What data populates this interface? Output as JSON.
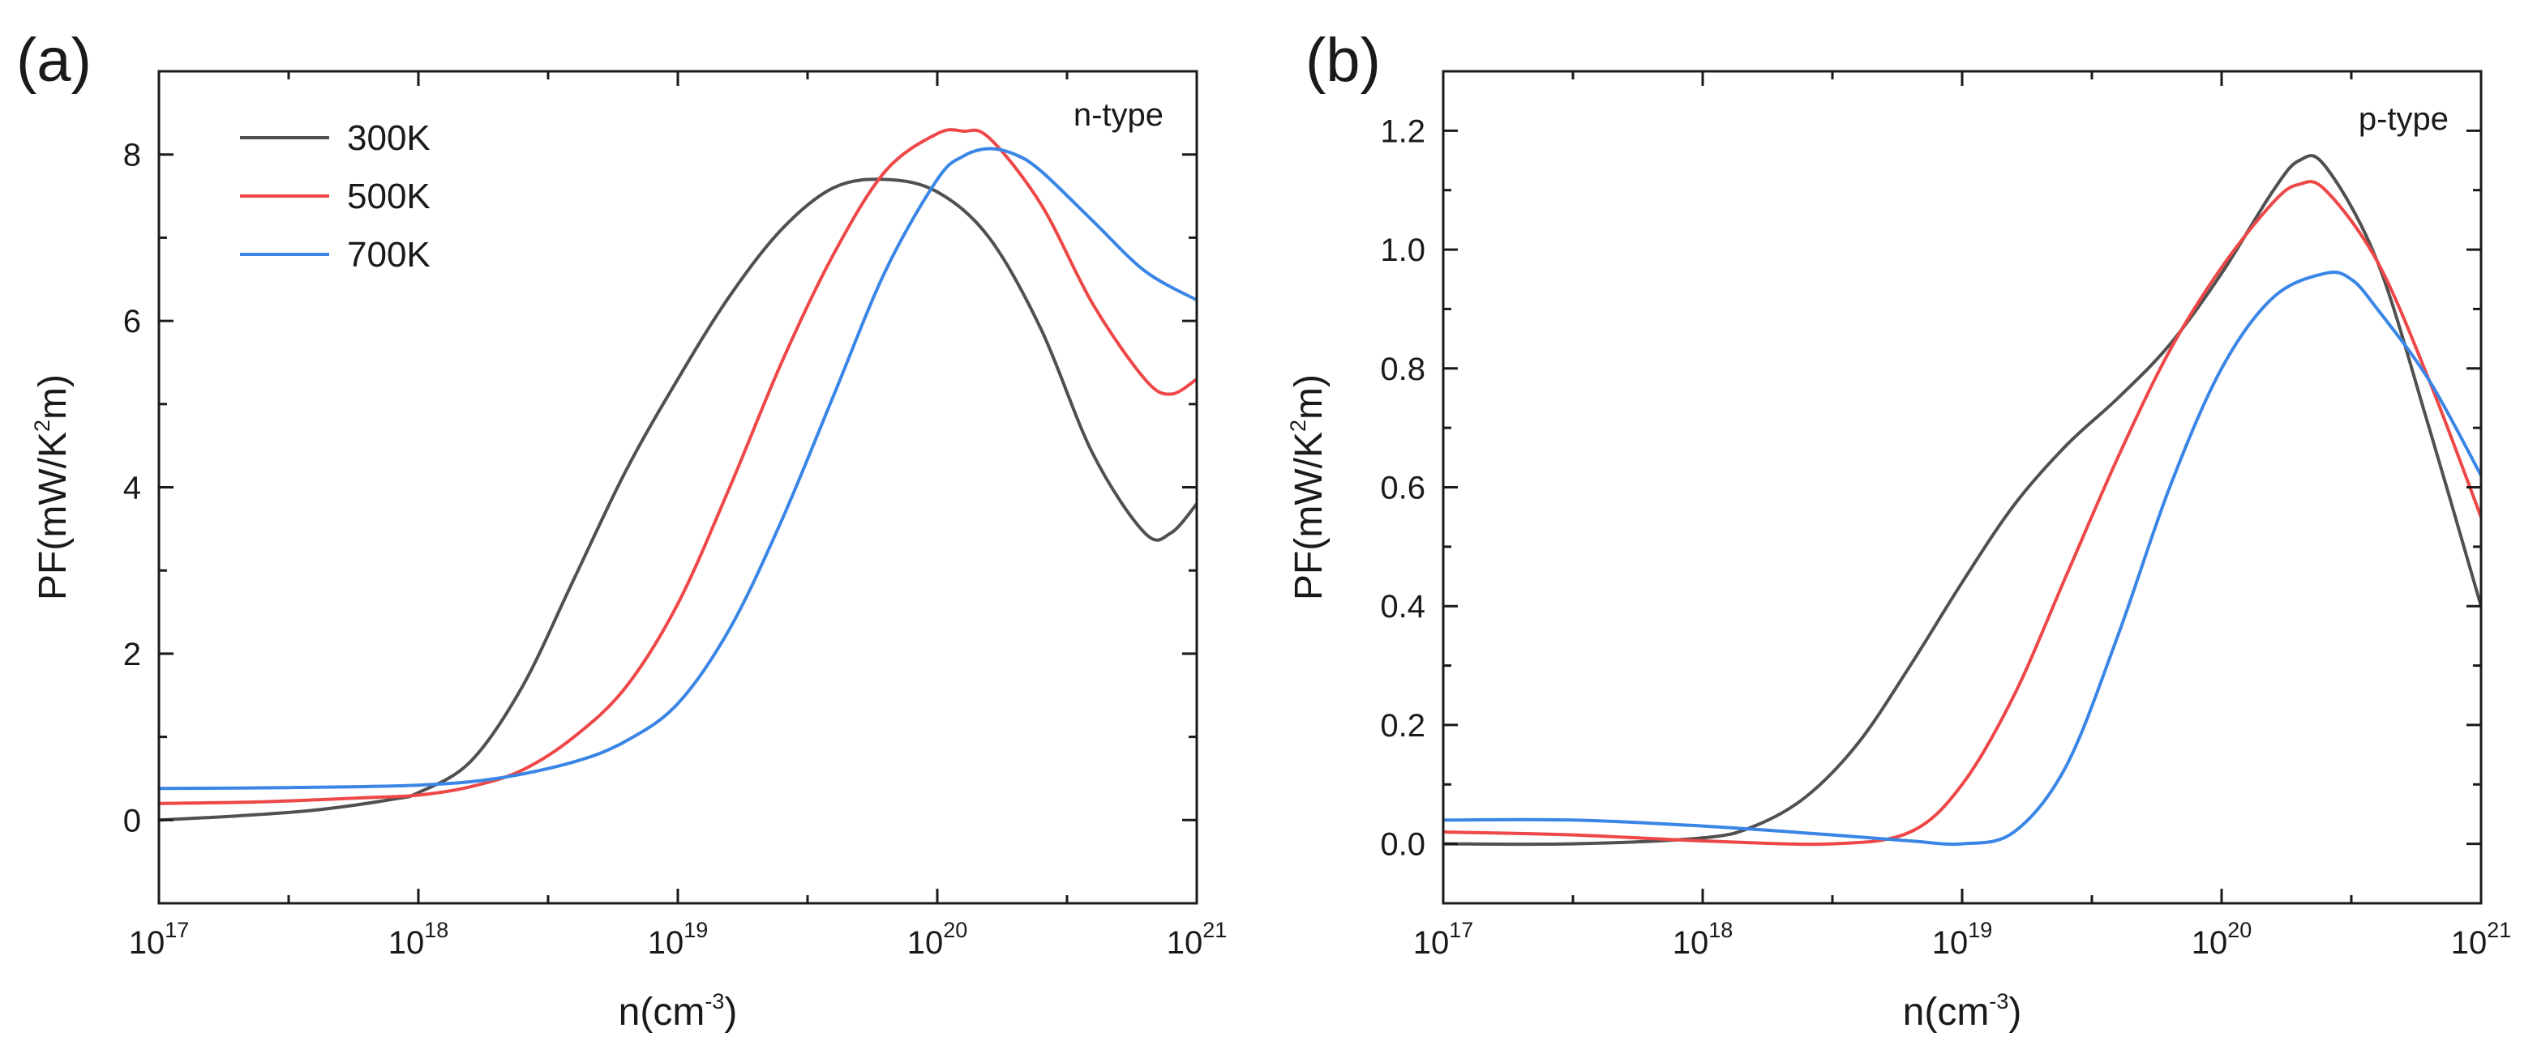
{
  "chart_data": [
    {
      "type": "line",
      "panel_label": "(a)",
      "annotation": "n-type",
      "xscale": "log",
      "xlim_exp": [
        17,
        21
      ],
      "x_ticks": [
        {
          "base": "10",
          "exp": "17",
          "value": 1e+17
        },
        {
          "base": "10",
          "exp": "18",
          "value": 1e+18
        },
        {
          "base": "10",
          "exp": "19",
          "value": 1e+19
        },
        {
          "base": "10",
          "exp": "20",
          "value": 1e+20
        },
        {
          "base": "10",
          "exp": "21",
          "value": 1e+21
        }
      ],
      "xlabel": {
        "main": "n(cm",
        "sup": "-3",
        "end": ")"
      },
      "ylabel": {
        "main": "PF(mW/K",
        "sup": "2",
        "end": "m)"
      },
      "ylim": [
        -1,
        9
      ],
      "y_ticks": [
        "0",
        "2",
        "4",
        "6",
        "8"
      ],
      "legend_position": "top-left",
      "series": [
        {
          "name": "300K",
          "color": "#505050",
          "log_x": [
            17,
            17.3,
            17.6,
            17.9,
            18.0,
            18.2,
            18.4,
            18.6,
            18.8,
            19.0,
            19.2,
            19.4,
            19.6,
            19.8,
            20.0,
            20.2,
            20.4,
            20.6,
            20.8,
            20.9,
            21.0
          ],
          "y": [
            0.0,
            0.05,
            0.12,
            0.25,
            0.33,
            0.7,
            1.6,
            2.9,
            4.2,
            5.3,
            6.3,
            7.1,
            7.6,
            7.7,
            7.55,
            7.0,
            5.9,
            4.4,
            3.45,
            3.45,
            3.8
          ]
        },
        {
          "name": "500K",
          "color": "#ee4747",
          "log_x": [
            17,
            17.4,
            17.8,
            18.0,
            18.2,
            18.4,
            18.6,
            18.8,
            19.0,
            19.2,
            19.4,
            19.6,
            19.8,
            20.0,
            20.1,
            20.2,
            20.4,
            20.6,
            20.8,
            20.9,
            21.0
          ],
          "y": [
            0.2,
            0.22,
            0.27,
            0.3,
            0.4,
            0.6,
            1.0,
            1.6,
            2.6,
            4.0,
            5.5,
            6.8,
            7.8,
            8.25,
            8.28,
            8.2,
            7.4,
            6.2,
            5.3,
            5.12,
            5.3
          ]
        },
        {
          "name": "700K",
          "color": "#3a86e6",
          "log_x": [
            17,
            17.5,
            18.0,
            18.3,
            18.6,
            18.8,
            19.0,
            19.2,
            19.4,
            19.6,
            19.8,
            20.0,
            20.1,
            20.2,
            20.3,
            20.4,
            20.6,
            20.8,
            21.0
          ],
          "y": [
            0.38,
            0.39,
            0.42,
            0.5,
            0.7,
            0.95,
            1.4,
            2.3,
            3.6,
            5.1,
            6.6,
            7.7,
            7.98,
            8.07,
            8.0,
            7.8,
            7.2,
            6.6,
            6.25
          ]
        }
      ]
    },
    {
      "type": "line",
      "panel_label": "(b)",
      "annotation": "p-type",
      "xscale": "log",
      "xlim_exp": [
        17,
        21
      ],
      "x_ticks": [
        {
          "base": "10",
          "exp": "17",
          "value": 1e+17
        },
        {
          "base": "10",
          "exp": "18",
          "value": 1e+18
        },
        {
          "base": "10",
          "exp": "19",
          "value": 1e+19
        },
        {
          "base": "10",
          "exp": "20",
          "value": 1e+20
        },
        {
          "base": "10",
          "exp": "21",
          "value": 1e+21
        }
      ],
      "xlabel": {
        "main": "n(cm",
        "sup": "-3",
        "end": ")"
      },
      "ylabel": {
        "main": "PF(mW/K",
        "sup": "2",
        "end": "m)"
      },
      "ylim": [
        -0.1,
        1.3
      ],
      "y_ticks": [
        "0.0",
        "0.2",
        "0.4",
        "0.6",
        "0.8",
        "1.0",
        "1.2"
      ],
      "series": [
        {
          "name": "300K",
          "color": "#505050",
          "log_x": [
            17,
            17.5,
            18.0,
            18.2,
            18.4,
            18.6,
            18.8,
            19.0,
            19.2,
            19.4,
            19.6,
            19.8,
            20.0,
            20.2,
            20.3,
            20.4,
            20.6,
            20.8,
            21.0
          ],
          "y": [
            0.0,
            0.0,
            0.01,
            0.03,
            0.08,
            0.17,
            0.3,
            0.44,
            0.57,
            0.67,
            0.75,
            0.84,
            0.96,
            1.1,
            1.15,
            1.14,
            0.98,
            0.7,
            0.4
          ]
        },
        {
          "name": "500K",
          "color": "#ee4747",
          "log_x": [
            17,
            17.5,
            18.0,
            18.5,
            18.8,
            19.0,
            19.2,
            19.4,
            19.6,
            19.8,
            20.0,
            20.2,
            20.3,
            20.4,
            20.6,
            20.8,
            21.0
          ],
          "y": [
            0.02,
            0.015,
            0.005,
            0.0,
            0.02,
            0.1,
            0.25,
            0.45,
            0.65,
            0.83,
            0.97,
            1.08,
            1.11,
            1.1,
            0.98,
            0.78,
            0.55
          ]
        },
        {
          "name": "700K",
          "color": "#3a86e6",
          "log_x": [
            17,
            17.5,
            18.0,
            18.5,
            18.8,
            19.0,
            19.2,
            19.4,
            19.6,
            19.8,
            20.0,
            20.2,
            20.4,
            20.5,
            20.6,
            20.8,
            21.0
          ],
          "y": [
            0.04,
            0.04,
            0.03,
            0.015,
            0.005,
            0.0,
            0.02,
            0.13,
            0.35,
            0.6,
            0.8,
            0.92,
            0.96,
            0.95,
            0.9,
            0.78,
            0.62
          ]
        }
      ]
    }
  ]
}
